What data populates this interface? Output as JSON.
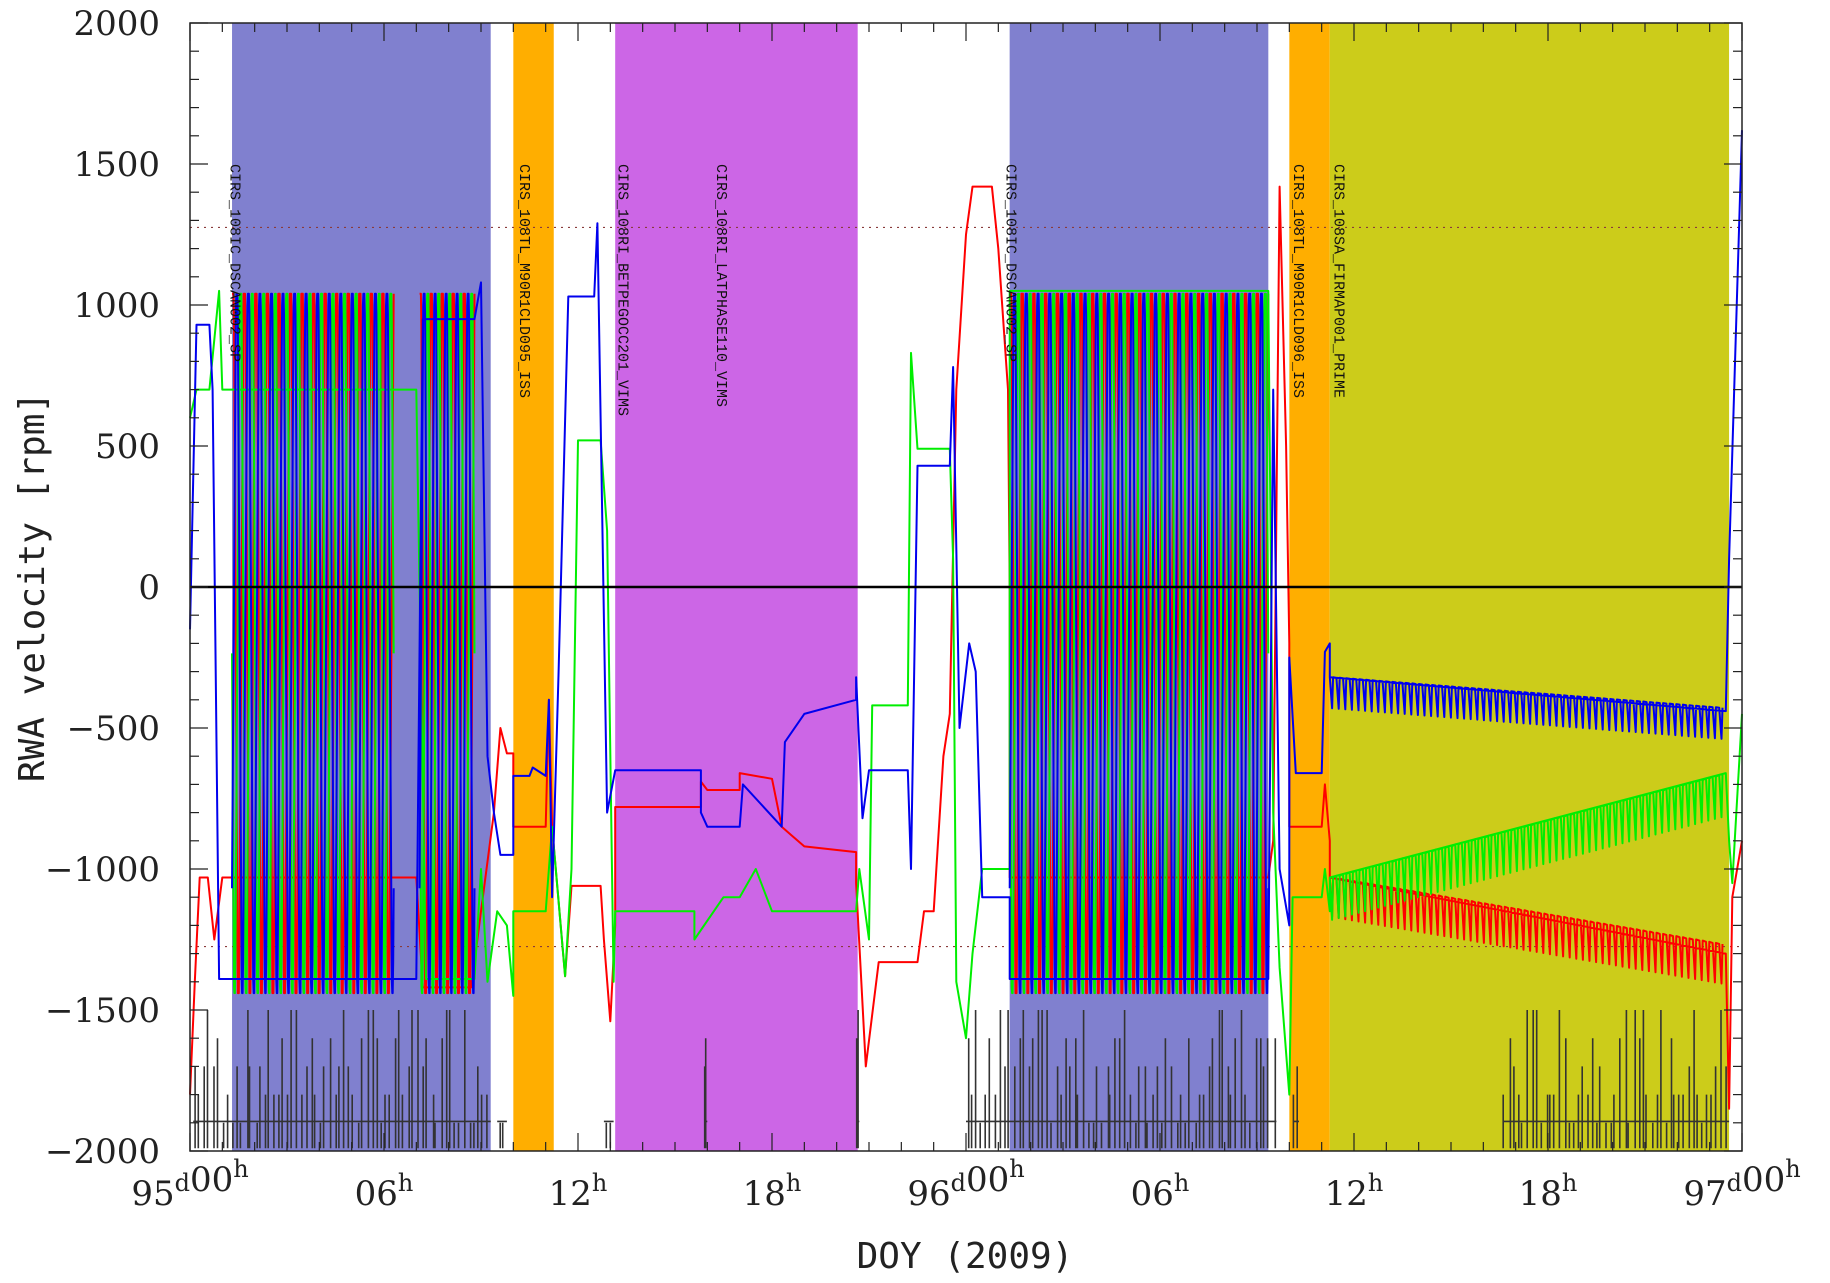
{
  "chart_data": {
    "type": "line",
    "xlabel": "DOY (2009)",
    "ylabel": "RWA velocity [rpm]",
    "x_unit": "hours from DOY 95 00h",
    "xlim": [
      0,
      48
    ],
    "ylim": [
      -2000,
      2000
    ],
    "x_ticks": [
      {
        "x": 0,
        "label": "95",
        "sup1": "d",
        "label2": "00",
        "sup2": "h"
      },
      {
        "x": 6,
        "label": "06",
        "sup1": "h"
      },
      {
        "x": 12,
        "label": "12",
        "sup1": "h"
      },
      {
        "x": 18,
        "label": "18",
        "sup1": "h"
      },
      {
        "x": 24,
        "label": "96",
        "sup1": "d",
        "label2": "00",
        "sup2": "h"
      },
      {
        "x": 30,
        "label": "06",
        "sup1": "h"
      },
      {
        "x": 36,
        "label": "12",
        "sup1": "h"
      },
      {
        "x": 42,
        "label": "18",
        "sup1": "h"
      },
      {
        "x": 48,
        "label": "97",
        "sup1": "d",
        "label2": "00",
        "sup2": "h"
      }
    ],
    "y_ticks": [
      "2000",
      "1500",
      "1000",
      "500",
      "0",
      "−500",
      "−1000",
      "−1500",
      "−2000"
    ],
    "y_tick_values": [
      2000,
      1500,
      1000,
      500,
      0,
      -500,
      -1000,
      -1500,
      -2000
    ],
    "zero_line": 0,
    "reference_lines": [
      1275,
      -1275
    ],
    "bands": [
      {
        "start": 1.3,
        "end": 9.3,
        "color": "#8080cf",
        "label": "CIRS_108IC_DSCAN002_SP"
      },
      {
        "start": 10.0,
        "end": 11.25,
        "color": "#ffae00",
        "label": "CIRS_108TL_M90R1CLD095_ISS"
      },
      {
        "start": 13.15,
        "end": 20.65,
        "color": "#cc66e6",
        "label": "CIRS_108RI_BETPEGOCC201_VIMS"
      },
      {
        "start": 25.35,
        "end": 33.35,
        "color": "#8080cf",
        "label": "CIRS_108IC_DSCAN002_SP"
      },
      {
        "start": 34.0,
        "end": 35.25,
        "color": "#ffae00",
        "label": "CIRS_108TL_M90R1CLD096_ISS"
      },
      {
        "start": 35.25,
        "end": 47.6,
        "color": "#cccc1a",
        "label": "CIRS_108SA_FIRMAP001_PRIME"
      }
    ],
    "band_label_positions": [
      {
        "x": 1.25,
        "text": "CIRS_108IC_DSCAN002_SP"
      },
      {
        "x": 10.2,
        "text": "CIRS_108TL_M90R1CLD095_ISS"
      },
      {
        "x": 13.25,
        "text": "CIRS_108RI_BETPEGOCC201_VIMS"
      },
      {
        "x": 16.3,
        "text": "CIRS_108RI_LATPHASE110_VIMS"
      },
      {
        "x": 25.25,
        "text": "CIRS_108IC_DSCAN002_SP"
      },
      {
        "x": 34.15,
        "text": "CIRS_108TL_M90R1CLD096_ISS"
      },
      {
        "x": 35.4,
        "text": "CIRS_108SA_FIRMAP001_PRIME"
      }
    ],
    "series": [
      {
        "color": "#ff0000",
        "points": [
          [
            0,
            -1800
          ],
          [
            0.15,
            -1400
          ],
          [
            0.3,
            -1030
          ],
          [
            0.55,
            -1030
          ],
          [
            0.75,
            -1250
          ],
          [
            1.0,
            -1030
          ],
          [
            1.3,
            -1030
          ],
          [
            6.3,
            -1030
          ],
          [
            7.0,
            -1030
          ],
          [
            7.2,
            -1420
          ],
          [
            8.7,
            -1420
          ],
          [
            9.0,
            -1150
          ],
          [
            9.4,
            -800
          ],
          [
            9.6,
            -500
          ],
          [
            9.8,
            -590
          ],
          [
            10.0,
            -590
          ],
          [
            10.0,
            -850
          ],
          [
            11.0,
            -850
          ],
          [
            11.1,
            -400
          ],
          [
            11.2,
            -850
          ],
          [
            11.6,
            -1380
          ],
          [
            11.8,
            -1060
          ],
          [
            12.7,
            -1060
          ],
          [
            12.8,
            -1250
          ],
          [
            13.0,
            -1540
          ],
          [
            13.15,
            -1200
          ],
          [
            13.15,
            -780
          ],
          [
            15.8,
            -780
          ],
          [
            15.8,
            -690
          ],
          [
            16.0,
            -720
          ],
          [
            17.0,
            -720
          ],
          [
            17.0,
            -660
          ],
          [
            18.0,
            -680
          ],
          [
            18.3,
            -850
          ],
          [
            18.6,
            -880
          ],
          [
            19.0,
            -920
          ],
          [
            20.6,
            -940
          ],
          [
            20.6,
            -1050
          ],
          [
            20.9,
            -1700
          ],
          [
            21.3,
            -1330
          ],
          [
            22.5,
            -1330
          ],
          [
            22.7,
            -1150
          ],
          [
            23.0,
            -1150
          ],
          [
            23.3,
            -600
          ],
          [
            23.5,
            -450
          ],
          [
            23.7,
            700
          ],
          [
            24.0,
            1250
          ],
          [
            24.2,
            1420
          ],
          [
            24.8,
            1420
          ],
          [
            25.0,
            1200
          ],
          [
            25.3,
            700
          ],
          [
            25.35,
            0
          ],
          [
            25.35,
            -1030
          ],
          [
            33.35,
            -1030
          ],
          [
            33.5,
            -900
          ],
          [
            33.7,
            1420
          ],
          [
            33.9,
            500
          ],
          [
            34.0,
            -200
          ],
          [
            34.0,
            -850
          ],
          [
            35.0,
            -850
          ],
          [
            35.1,
            -700
          ],
          [
            35.25,
            -900
          ],
          [
            35.25,
            -1030
          ],
          [
            47.5,
            -1300
          ],
          [
            47.6,
            -1850
          ],
          [
            47.7,
            -1100
          ],
          [
            48.0,
            -900
          ]
        ]
      },
      {
        "color": "#00ee00",
        "points": [
          [
            0,
            600
          ],
          [
            0.2,
            700
          ],
          [
            0.6,
            700
          ],
          [
            0.9,
            1050
          ],
          [
            1.0,
            700
          ],
          [
            1.3,
            700
          ],
          [
            6.3,
            700
          ],
          [
            7.0,
            700
          ],
          [
            7.3,
            -1390
          ],
          [
            8.8,
            -1390
          ],
          [
            9.0,
            -1000
          ],
          [
            9.2,
            -1400
          ],
          [
            9.5,
            -1150
          ],
          [
            9.8,
            -1200
          ],
          [
            10.0,
            -1450
          ],
          [
            10.0,
            -1150
          ],
          [
            11.0,
            -1150
          ],
          [
            11.2,
            -850
          ],
          [
            11.6,
            -1380
          ],
          [
            11.8,
            -1000
          ],
          [
            12.0,
            520
          ],
          [
            12.7,
            520
          ],
          [
            12.9,
            200
          ],
          [
            13.1,
            -1400
          ],
          [
            13.15,
            -1150
          ],
          [
            15.6,
            -1150
          ],
          [
            15.6,
            -1250
          ],
          [
            16.5,
            -1100
          ],
          [
            17.0,
            -1100
          ],
          [
            17.5,
            -1000
          ],
          [
            18.0,
            -1150
          ],
          [
            20.6,
            -1150
          ],
          [
            20.7,
            -1000
          ],
          [
            21.0,
            -1250
          ],
          [
            21.1,
            -420
          ],
          [
            22.2,
            -420
          ],
          [
            22.3,
            830
          ],
          [
            22.5,
            490
          ],
          [
            23.5,
            490
          ],
          [
            23.6,
            100
          ],
          [
            23.7,
            -1400
          ],
          [
            24.0,
            -1600
          ],
          [
            24.2,
            -1300
          ],
          [
            24.5,
            -1000
          ],
          [
            25.35,
            -1000
          ],
          [
            25.35,
            1050
          ],
          [
            33.35,
            1050
          ],
          [
            33.5,
            -800
          ],
          [
            33.7,
            -1350
          ],
          [
            34.0,
            -1800
          ],
          [
            34.1,
            -1100
          ],
          [
            35.0,
            -1100
          ],
          [
            35.1,
            -1000
          ],
          [
            35.25,
            -1150
          ],
          [
            35.25,
            -1030
          ],
          [
            47.5,
            -660
          ],
          [
            47.6,
            -900
          ],
          [
            47.7,
            -1050
          ],
          [
            48.0,
            -450
          ]
        ]
      },
      {
        "color": "#0000ee",
        "points": [
          [
            0,
            -150
          ],
          [
            0.2,
            930
          ],
          [
            0.6,
            930
          ],
          [
            0.7,
            700
          ],
          [
            0.9,
            -1390
          ],
          [
            1.3,
            -1390
          ],
          [
            6.3,
            -1390
          ],
          [
            7.0,
            -1390
          ],
          [
            7.2,
            950
          ],
          [
            8.8,
            950
          ],
          [
            9.0,
            1080
          ],
          [
            9.2,
            -600
          ],
          [
            9.4,
            -800
          ],
          [
            9.6,
            -950
          ],
          [
            10.0,
            -950
          ],
          [
            10.0,
            -670
          ],
          [
            10.5,
            -670
          ],
          [
            10.6,
            -640
          ],
          [
            11.0,
            -670
          ],
          [
            11.1,
            -400
          ],
          [
            11.2,
            -1100
          ],
          [
            11.4,
            -300
          ],
          [
            11.7,
            1030
          ],
          [
            12.5,
            1030
          ],
          [
            12.6,
            1290
          ],
          [
            12.9,
            -800
          ],
          [
            13.15,
            -650
          ],
          [
            15.8,
            -650
          ],
          [
            15.8,
            -800
          ],
          [
            16.0,
            -850
          ],
          [
            17.0,
            -850
          ],
          [
            17.1,
            -700
          ],
          [
            18.3,
            -850
          ],
          [
            18.4,
            -550
          ],
          [
            19.0,
            -450
          ],
          [
            20.6,
            -400
          ],
          [
            20.6,
            -320
          ],
          [
            20.8,
            -820
          ],
          [
            21.0,
            -650
          ],
          [
            22.2,
            -650
          ],
          [
            22.3,
            -1000
          ],
          [
            22.5,
            430
          ],
          [
            23.5,
            430
          ],
          [
            23.6,
            780
          ],
          [
            23.8,
            -500
          ],
          [
            24.1,
            -200
          ],
          [
            24.3,
            -300
          ],
          [
            24.5,
            -1100
          ],
          [
            25.35,
            -1100
          ],
          [
            25.35,
            -1390
          ],
          [
            33.35,
            -1390
          ],
          [
            33.5,
            700
          ],
          [
            33.7,
            -1000
          ],
          [
            34.0,
            -1200
          ],
          [
            34.0,
            -250
          ],
          [
            34.2,
            -660
          ],
          [
            35.0,
            -660
          ],
          [
            35.1,
            -230
          ],
          [
            35.25,
            -200
          ],
          [
            35.25,
            -320
          ],
          [
            47.5,
            -440
          ],
          [
            47.6,
            100
          ],
          [
            48.0,
            1620
          ]
        ]
      }
    ],
    "oscillation_regions": [
      {
        "start": 1.3,
        "end": 6.3,
        "series": [
          0,
          1,
          2
        ],
        "top": 1040,
        "bottom": -1440,
        "cycles": 14
      },
      {
        "start": 7.1,
        "end": 8.8,
        "series": [
          0,
          1,
          2
        ],
        "top": 1040,
        "bottom": -1440,
        "cycles": 5
      },
      {
        "start": 25.35,
        "end": 33.35,
        "series": [
          0,
          1,
          2
        ],
        "top": 1040,
        "bottom": -1440,
        "cycles": 22
      }
    ],
    "sawtooth_regions": [
      {
        "series": 0,
        "start": 35.25,
        "end": 47.5,
        "base_start": -1030,
        "base_end": -1270,
        "amp": 140,
        "cycles": 60
      },
      {
        "series": 1,
        "start": 35.25,
        "end": 47.5,
        "base_start": -1030,
        "base_end": -660,
        "amp": 150,
        "cycles": 60
      },
      {
        "series": 2,
        "start": 35.25,
        "end": 47.5,
        "base_start": -320,
        "base_end": -430,
        "amp": 110,
        "cycles": 60
      }
    ],
    "activity_trace": {
      "color": "#333333",
      "regions": [
        [
          0.1,
          9.3
        ],
        [
          9.5,
          9.8
        ],
        [
          12.8,
          13.1
        ],
        [
          15.9,
          16.0
        ],
        [
          20.6,
          20.7
        ],
        [
          24.0,
          33.6
        ],
        [
          34.1,
          34.3
        ],
        [
          40.6,
          47.6
        ]
      ]
    }
  }
}
